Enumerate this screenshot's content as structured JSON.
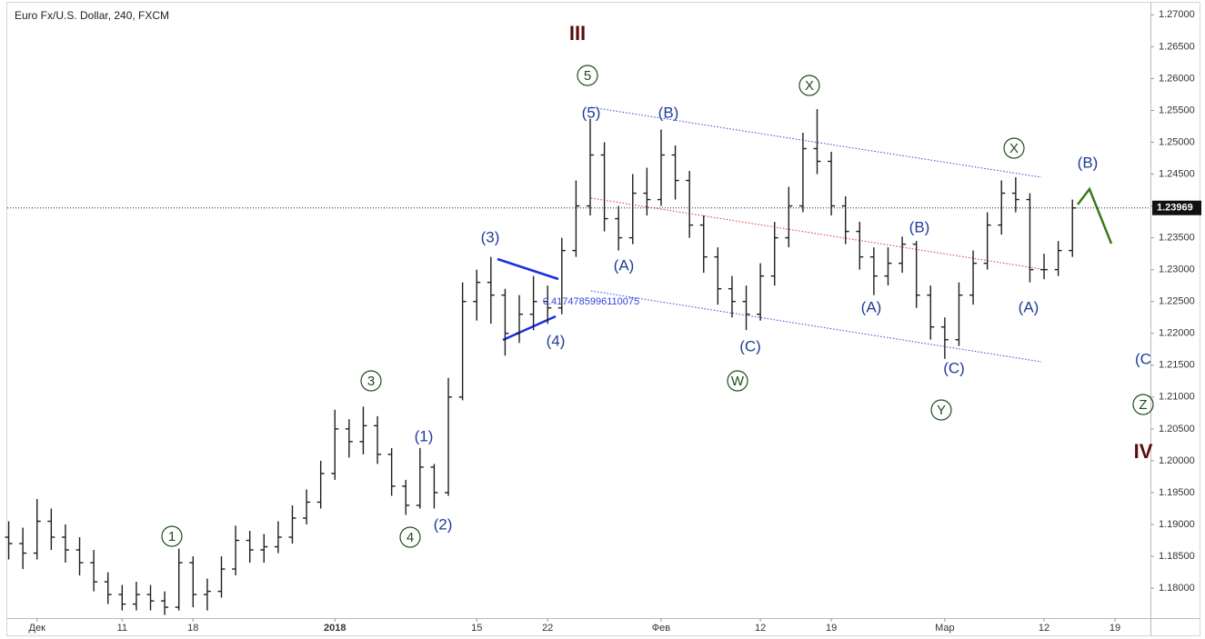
{
  "chart_data": {
    "type": "ohlc",
    "title": "Euro Fx/U.S. Dollar, 240, FXCM",
    "x": [
      -2,
      -1,
      0,
      1,
      2,
      3,
      4,
      5,
      6,
      7,
      8,
      9,
      10,
      11,
      12,
      13,
      14,
      15,
      16,
      17,
      18,
      19,
      20,
      21,
      22,
      23,
      24,
      25,
      26,
      27,
      28,
      29,
      30,
      31,
      32,
      33,
      34,
      35,
      36,
      37,
      38,
      39,
      40,
      41,
      42,
      43,
      44,
      45,
      46,
      47,
      48,
      49,
      50,
      51,
      52,
      53,
      54,
      55,
      56,
      57,
      58,
      59,
      60,
      61,
      62,
      63,
      64,
      65,
      66,
      67,
      68,
      69,
      70,
      71,
      72,
      73
    ],
    "open": [
      1.188,
      1.187,
      1.1855,
      1.1905,
      1.188,
      1.186,
      1.184,
      1.181,
      1.179,
      1.1775,
      1.179,
      1.178,
      1.177,
      1.184,
      1.179,
      1.1795,
      1.183,
      1.1875,
      1.186,
      1.1865,
      1.188,
      1.191,
      1.1935,
      1.198,
      1.205,
      1.203,
      1.2055,
      1.201,
      1.196,
      1.193,
      1.199,
      1.195,
      1.21,
      1.225,
      1.228,
      1.226,
      1.22,
      1.223,
      1.225,
      1.224,
      1.233,
      1.24,
      1.248,
      1.238,
      1.235,
      1.242,
      1.241,
      1.248,
      1.244,
      1.237,
      1.232,
      1.227,
      1.225,
      1.223,
      1.229,
      1.235,
      1.24,
      1.249,
      1.247,
      1.24,
      1.236,
      1.232,
      1.229,
      1.231,
      1.234,
      1.226,
      1.221,
      1.219,
      1.226,
      1.231,
      1.237,
      1.242,
      1.241,
      1.23,
      1.23,
      1.233
    ],
    "high": [
      1.1905,
      1.1895,
      1.194,
      1.1925,
      1.19,
      1.188,
      1.186,
      1.1825,
      1.1805,
      1.181,
      1.1805,
      1.1795,
      1.1862,
      1.185,
      1.1815,
      1.185,
      1.1898,
      1.189,
      1.1885,
      1.1905,
      1.193,
      1.1955,
      1.2,
      1.208,
      1.2065,
      1.2085,
      1.207,
      1.202,
      1.197,
      1.202,
      1.1995,
      1.213,
      1.228,
      1.23,
      1.232,
      1.227,
      1.226,
      1.229,
      1.2275,
      1.235,
      1.244,
      1.2537,
      1.25,
      1.24,
      1.245,
      1.246,
      1.252,
      1.2495,
      1.2455,
      1.2385,
      1.2335,
      1.229,
      1.2275,
      1.231,
      1.2375,
      1.243,
      1.2515,
      1.2552,
      1.2485,
      1.2415,
      1.2375,
      1.2335,
      1.2335,
      1.2352,
      1.2345,
      1.2275,
      1.2225,
      1.228,
      1.233,
      1.239,
      1.244,
      1.2445,
      1.242,
      1.2325,
      1.2345,
      1.241
    ],
    "low": [
      1.1845,
      1.183,
      1.1845,
      1.186,
      1.184,
      1.182,
      1.1795,
      1.1775,
      1.1765,
      1.1765,
      1.1765,
      1.1758,
      1.1765,
      1.177,
      1.1765,
      1.1785,
      1.182,
      1.184,
      1.184,
      1.1855,
      1.187,
      1.19,
      1.1925,
      1.197,
      1.2005,
      1.201,
      1.1995,
      1.1945,
      1.1915,
      1.1925,
      1.1925,
      1.1945,
      1.2095,
      1.222,
      1.2215,
      1.2165,
      1.2185,
      1.2205,
      1.2215,
      1.223,
      1.232,
      1.2385,
      1.236,
      1.233,
      1.234,
      1.2385,
      1.24,
      1.241,
      1.235,
      1.2295,
      1.2245,
      1.2225,
      1.2205,
      1.222,
      1.2275,
      1.2335,
      1.239,
      1.245,
      1.2385,
      1.234,
      1.23,
      1.226,
      1.2275,
      1.2295,
      1.224,
      1.219,
      1.216,
      1.218,
      1.2245,
      1.23,
      1.2355,
      1.239,
      1.228,
      1.2285,
      1.229,
      1.232
    ],
    "close": [
      1.187,
      1.1855,
      1.1905,
      1.188,
      1.186,
      1.184,
      1.181,
      1.179,
      1.1775,
      1.179,
      1.178,
      1.177,
      1.184,
      1.179,
      1.1795,
      1.183,
      1.1875,
      1.186,
      1.1865,
      1.188,
      1.191,
      1.1935,
      1.198,
      1.205,
      1.203,
      1.2055,
      1.201,
      1.196,
      1.193,
      1.199,
      1.195,
      1.21,
      1.225,
      1.228,
      1.226,
      1.22,
      1.223,
      1.225,
      1.224,
      1.233,
      1.24,
      1.248,
      1.238,
      1.235,
      1.242,
      1.241,
      1.248,
      1.244,
      1.237,
      1.232,
      1.227,
      1.225,
      1.223,
      1.229,
      1.235,
      1.24,
      1.249,
      1.247,
      1.24,
      1.236,
      1.232,
      1.229,
      1.231,
      1.234,
      1.226,
      1.221,
      1.219,
      1.226,
      1.231,
      1.237,
      1.242,
      1.241,
      1.23,
      1.23,
      1.233,
      1.23969
    ],
    "color": "#1e1e1e",
    "last_price": 1.23969,
    "xlim": [
      -2.1,
      78.5
    ],
    "xticks": [
      {
        "value": 0,
        "label": "Дек"
      },
      {
        "value": 6,
        "label": "11"
      },
      {
        "value": 11,
        "label": "18"
      },
      {
        "value": 21,
        "label": "2018"
      },
      {
        "value": 31,
        "label": "15"
      },
      {
        "value": 36,
        "label": "22"
      },
      {
        "value": 44,
        "label": "Фев"
      },
      {
        "value": 51,
        "label": "12"
      },
      {
        "value": 56,
        "label": "19"
      },
      {
        "value": 64,
        "label": "Мар"
      },
      {
        "value": 71,
        "label": "12"
      },
      {
        "value": 76,
        "label": "19"
      }
    ],
    "ylim": [
      1.1753,
      1.2719
    ],
    "yticks": [
      {
        "value": 1.18,
        "label": "1.18000"
      },
      {
        "value": 1.185,
        "label": "1.18500"
      },
      {
        "value": 1.19,
        "label": "1.19000"
      },
      {
        "value": 1.195,
        "label": "1.19500"
      },
      {
        "value": 1.2,
        "label": "1.20000"
      },
      {
        "value": 1.205,
        "label": "1.20500"
      },
      {
        "value": 1.21,
        "label": "1.21000"
      },
      {
        "value": 1.215,
        "label": "1.21500"
      },
      {
        "value": 1.22,
        "label": "1.22000"
      },
      {
        "value": 1.225,
        "label": "1.22500"
      },
      {
        "value": 1.23,
        "label": "1.23000"
      },
      {
        "value": 1.235,
        "label": "1.23500"
      },
      {
        "value": 1.24,
        "label": "1.24000"
      },
      {
        "value": 1.245,
        "label": "1.24500"
      },
      {
        "value": 1.25,
        "label": "1.25000"
      },
      {
        "value": 1.255,
        "label": "1.25500"
      },
      {
        "value": 1.26,
        "label": "1.26000"
      },
      {
        "value": 1.265,
        "label": "1.26500"
      },
      {
        "value": 1.27,
        "label": "1.27000"
      }
    ],
    "annotations": [
      "III",
      "5",
      "(5)",
      "(B)",
      "X",
      "X",
      "(B)",
      "(3)",
      "(A)",
      "(B)",
      "(A)",
      "(A)",
      "(4)",
      "(C)",
      "W",
      "(C)",
      "Y",
      "3",
      "(1)",
      "(2)",
      "4",
      "1",
      "(C",
      "Z",
      "IV",
      "0.4174785996110075"
    ]
  }
}
